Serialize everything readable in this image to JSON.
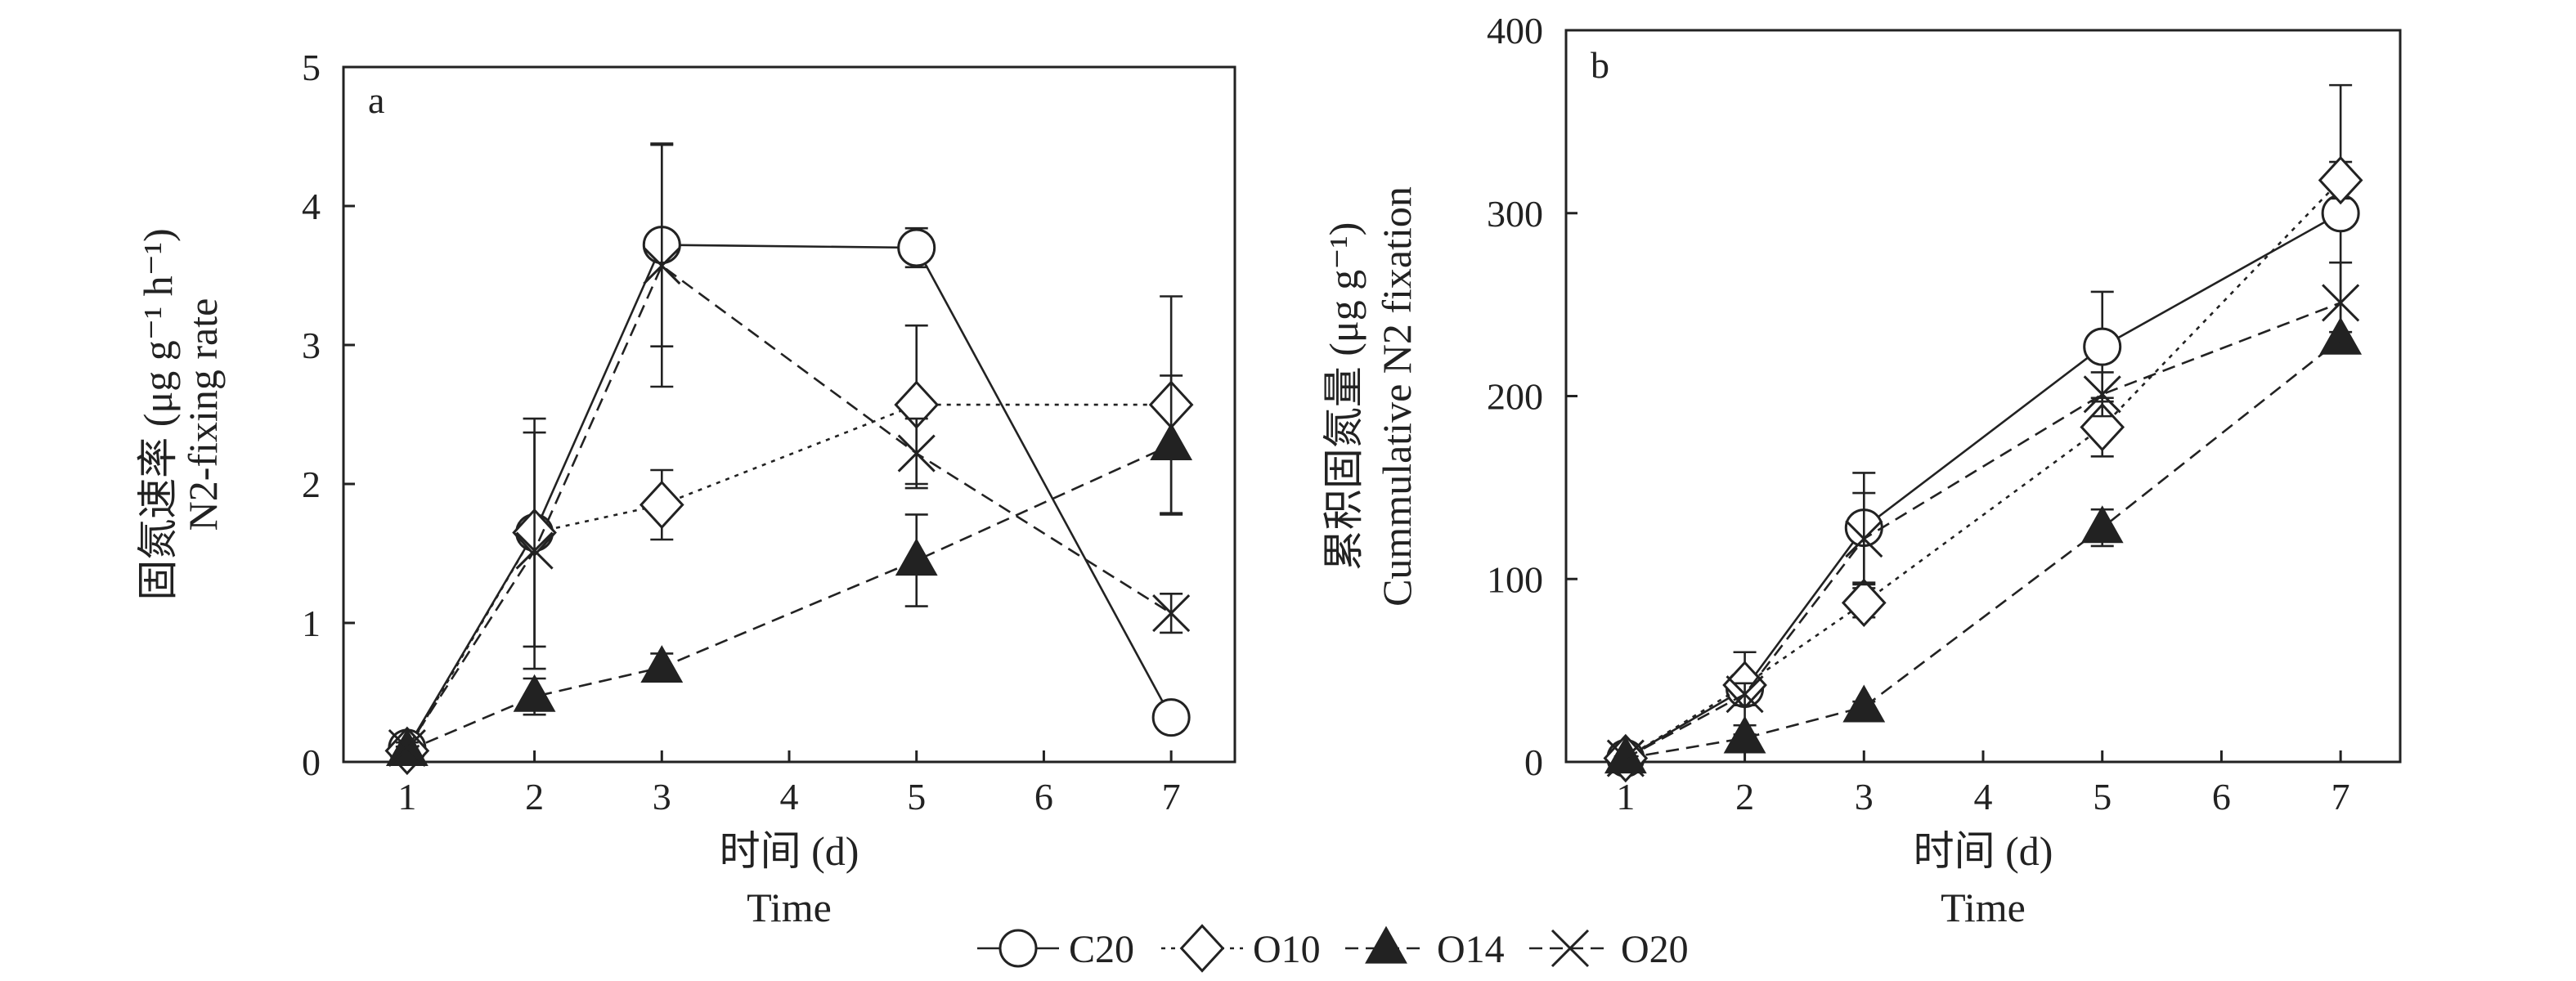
{
  "legend": {
    "items": [
      {
        "label": "C20",
        "series_index": 0
      },
      {
        "label": "O10",
        "series_index": 1
      },
      {
        "label": "O14",
        "series_index": 2
      },
      {
        "label": "O20",
        "series_index": 3
      }
    ]
  },
  "chart_data": [
    {
      "type": "line",
      "panel_label": "a",
      "title": "",
      "xlabel": "时间 (d)",
      "xlabel2": "Time",
      "ylabel": "N2-fixing rate",
      "ylabel_cn": "固氮速率 (μg g⁻¹ h⁻¹)",
      "xlim": [
        0.5,
        7.5
      ],
      "ylim": [
        0,
        5
      ],
      "x_ticks": [
        1,
        2,
        3,
        4,
        5,
        6,
        7
      ],
      "y_ticks": [
        0,
        1,
        2,
        3,
        4,
        5
      ],
      "x": [
        1,
        2,
        3,
        5,
        7
      ],
      "grid": false,
      "series": [
        {
          "name": "C20",
          "marker": "circle-open",
          "line": "solid",
          "values": [
            0.1,
            1.65,
            3.72,
            3.7,
            0.32
          ],
          "errors": [
            0.05,
            0.82,
            0.73,
            0.14,
            0.09
          ]
        },
        {
          "name": "O10",
          "marker": "diamond-open",
          "line": "dotted",
          "values": [
            0.08,
            1.65,
            1.85,
            2.57,
            2.57
          ],
          "errors": [
            0.04,
            0.08,
            0.25,
            0.57,
            0.78
          ]
        },
        {
          "name": "O14",
          "marker": "triangle-filled",
          "line": "dashed",
          "values": [
            0.08,
            0.47,
            0.68,
            1.45,
            2.28
          ],
          "errors": [
            0.03,
            0.13,
            0.1,
            0.33,
            0.5
          ]
        },
        {
          "name": "O20",
          "marker": "x",
          "line": "dashed",
          "values": [
            0.1,
            1.52,
            3.57,
            2.22,
            1.07
          ],
          "errors": [
            0.04,
            0.85,
            0.87,
            0.25,
            0.14
          ]
        }
      ]
    },
    {
      "type": "line",
      "panel_label": "b",
      "title": "",
      "xlabel": "时间 (d)",
      "xlabel2": "Time",
      "ylabel": "Cummulative N2 fixation",
      "ylabel_cn": "累积固氮量 (μg g⁻¹)",
      "xlim": [
        0.5,
        7.5
      ],
      "ylim": [
        0,
        400
      ],
      "x_ticks": [
        1,
        2,
        3,
        4,
        5,
        6,
        7
      ],
      "y_ticks": [
        0,
        100,
        200,
        300,
        400
      ],
      "x": [
        1,
        2,
        3,
        5,
        7
      ],
      "grid": false,
      "series": [
        {
          "name": "C20",
          "marker": "circle-open",
          "line": "solid",
          "values": [
            2,
            40,
            128,
            227,
            300
          ],
          "errors": [
            1,
            20,
            30,
            30,
            70
          ]
        },
        {
          "name": "O10",
          "marker": "diamond-open",
          "line": "dotted",
          "values": [
            2,
            42,
            87,
            183,
            318
          ],
          "errors": [
            1,
            5,
            8,
            16,
            10
          ]
        },
        {
          "name": "O14",
          "marker": "triangle-filled",
          "line": "dashed",
          "values": [
            2,
            13,
            30,
            128,
            231
          ],
          "errors": [
            1,
            2,
            3,
            10,
            4
          ]
        },
        {
          "name": "O20",
          "marker": "x",
          "line": "dashed",
          "values": [
            2,
            37,
            122,
            201,
            251
          ],
          "errors": [
            1,
            6,
            25,
            12,
            22
          ]
        }
      ]
    }
  ]
}
